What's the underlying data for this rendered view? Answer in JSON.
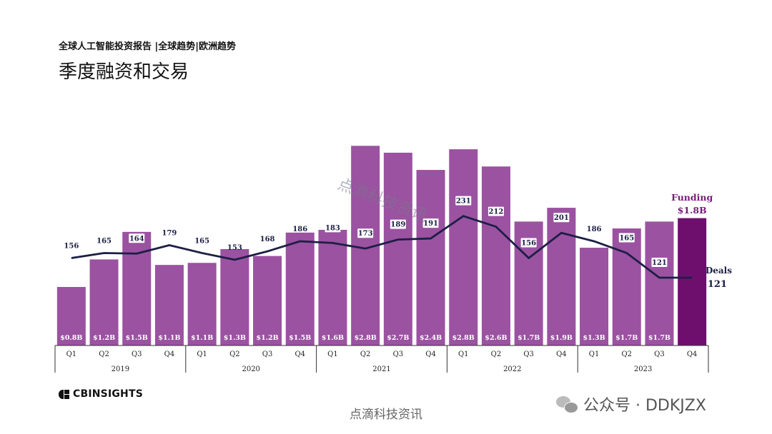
{
  "header": {
    "subtitle": "全球人工智能投资报告 |全球趋势|欧洲趋势",
    "title": "季度融资和交易"
  },
  "footer": {
    "logo_text": "CBINSIGHTS",
    "watermark_bottom": "点滴科技资讯",
    "wechat_text": "公众号 · DDKJZX",
    "diagonal_watermark": "点滴科技资讯"
  },
  "colors": {
    "bar": "#9b52a1",
    "bar_highlight": "#6e0f6e",
    "line": "#1c1f45",
    "label_text": "#ffffff",
    "funding_annotation": "#7a1a7a"
  },
  "chart_data": {
    "type": "bar",
    "ylim": [
      0,
      3.1
    ],
    "deals_ylim": [
      0,
      400
    ],
    "quarters": [
      "Q1",
      "Q2",
      "Q3",
      "Q4",
      "Q1",
      "Q2",
      "Q3",
      "Q4",
      "Q1",
      "Q2",
      "Q3",
      "Q4",
      "Q1",
      "Q2",
      "Q3",
      "Q4",
      "Q1",
      "Q2",
      "Q3",
      "Q4"
    ],
    "years": [
      "2019",
      "2020",
      "2021",
      "2022",
      "2023"
    ],
    "funding_values": [
      0.8,
      1.2,
      1.5,
      1.1,
      1.1,
      1.3,
      1.2,
      1.5,
      1.6,
      2.8,
      2.7,
      2.4,
      2.8,
      2.6,
      1.7,
      1.9,
      1.3,
      1.7,
      1.7,
      1.8
    ],
    "bar_heights": [
      0.85,
      1.25,
      1.65,
      1.17,
      1.2,
      1.4,
      1.3,
      1.64,
      1.68,
      2.9,
      2.8,
      2.55,
      2.85,
      2.6,
      1.8,
      2.0,
      1.42,
      1.7,
      1.8,
      1.85
    ],
    "funding_labels": [
      "$0.8B",
      "$1.2B",
      "$1.5B",
      "$1.1B",
      "$1.1B",
      "$1.3B",
      "$1.2B",
      "$1.5B",
      "$1.6B",
      "$2.8B",
      "$2.7B",
      "$2.4B",
      "$2.8B",
      "$2.6B",
      "$1.7B",
      "$1.9B",
      "$1.3B",
      "$1.7B",
      "$1.7B",
      ""
    ],
    "deals": [
      156,
      165,
      164,
      179,
      165,
      153,
      168,
      186,
      183,
      173,
      189,
      191,
      231,
      212,
      156,
      201,
      186,
      165,
      121,
      121
    ],
    "deals_labels": [
      "156",
      "165",
      "164",
      "179",
      "165",
      "153",
      "168",
      "186",
      "183",
      "173",
      "189",
      "191",
      "231",
      "212",
      "156",
      "201",
      "186",
      "165",
      "121",
      ""
    ],
    "highlight_index": 19,
    "funding_annotation_title": "Funding",
    "funding_annotation_value": "$1.8B",
    "deals_annotation_title": "Deals",
    "deals_annotation_value": "121"
  }
}
